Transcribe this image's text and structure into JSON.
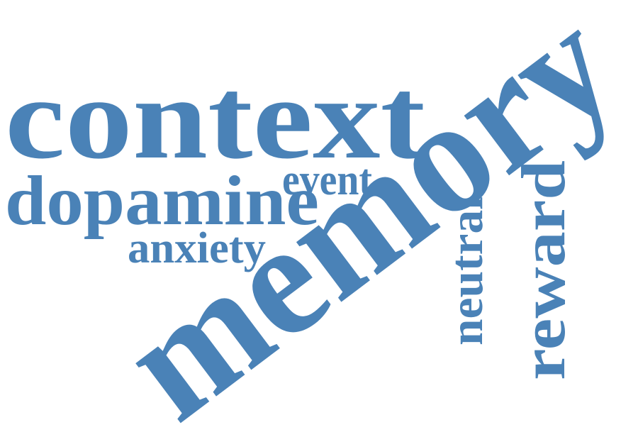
{
  "words": [
    {
      "id": "memory",
      "text": "memory",
      "weight": 1.0
    },
    {
      "id": "context",
      "text": "context",
      "weight": 0.75
    },
    {
      "id": "dopamine",
      "text": "dopamine",
      "weight": 0.45
    },
    {
      "id": "reward",
      "text": "reward",
      "weight": 0.42
    },
    {
      "id": "neutral",
      "text": "neutral",
      "weight": 0.3
    },
    {
      "id": "anxiety",
      "text": "anxiety",
      "weight": 0.27
    },
    {
      "id": "event",
      "text": "event",
      "weight": 0.25
    }
  ],
  "colors": {
    "text": "#4a82b7",
    "background": "#ffffff"
  }
}
